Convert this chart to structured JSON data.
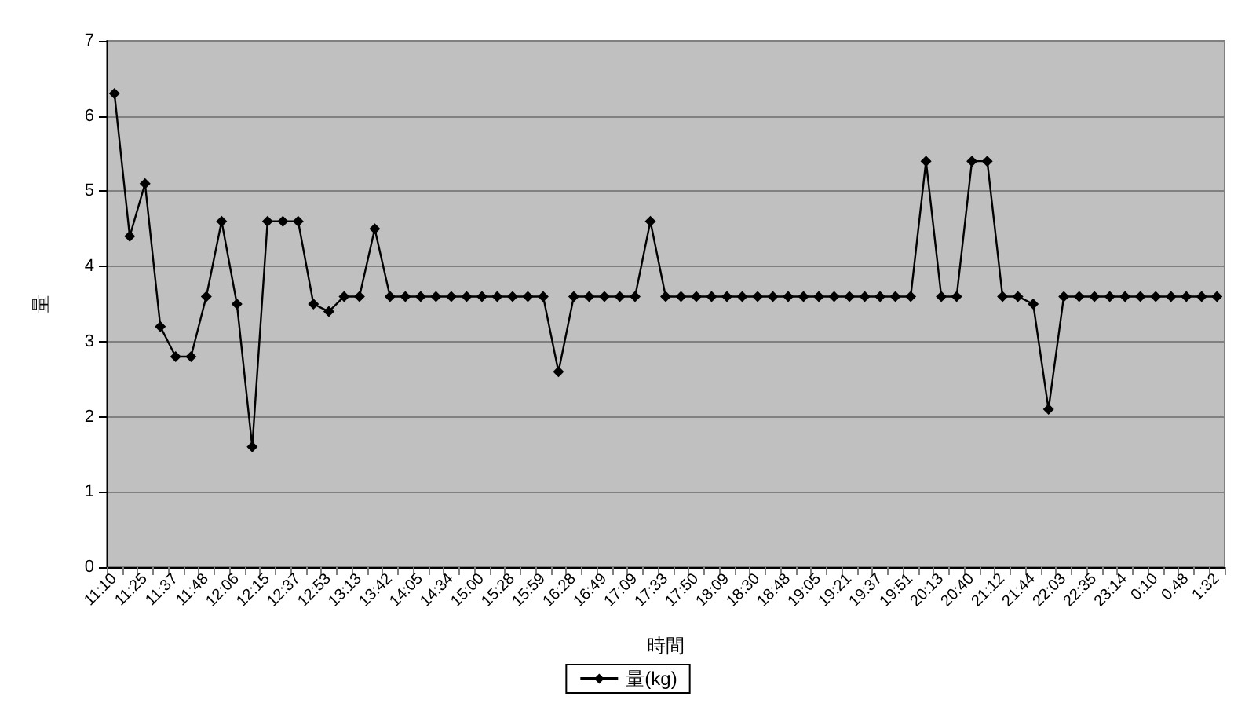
{
  "chart_data": {
    "type": "line",
    "xlabel": "時間",
    "ylabel": "量",
    "categories": [
      "11:10",
      null,
      "11:25",
      null,
      "11:37",
      null,
      "11:48",
      null,
      "12:06",
      null,
      "12:15",
      null,
      "12:37",
      null,
      "12:53",
      null,
      "13:13",
      null,
      "13:42",
      null,
      "14:05",
      null,
      "14:34",
      null,
      "15:00",
      null,
      "15:28",
      null,
      "15:59",
      null,
      "16:28",
      null,
      "16:49",
      null,
      "17:09",
      null,
      "17:33",
      null,
      "17:50",
      null,
      "18:09",
      null,
      "18:30",
      null,
      "18:48",
      null,
      "19:05",
      null,
      "19:21",
      null,
      "19:37",
      null,
      "19:51",
      null,
      "20:13",
      null,
      "20:40",
      null,
      "21:12",
      null,
      "21:44",
      null,
      "22:03",
      null,
      "22:35",
      null,
      "23:14",
      null,
      "0:10",
      null,
      "0:48",
      null,
      "1:32"
    ],
    "series": [
      {
        "name": "量(kg)",
        "color": "#000000",
        "values": [
          6.3,
          4.4,
          5.1,
          3.2,
          2.8,
          2.8,
          3.6,
          4.6,
          3.5,
          1.6,
          4.6,
          4.6,
          4.6,
          3.5,
          3.4,
          3.6,
          3.6,
          4.5,
          3.6,
          3.6,
          3.6,
          3.6,
          3.6,
          3.6,
          3.6,
          3.6,
          3.6,
          3.6,
          3.6,
          2.6,
          3.6,
          3.6,
          3.6,
          3.6,
          3.6,
          4.6,
          3.6,
          3.6,
          3.6,
          3.6,
          3.6,
          3.6,
          3.6,
          3.6,
          3.6,
          3.6,
          3.6,
          3.6,
          3.6,
          3.6,
          3.6,
          3.6,
          3.6,
          5.4,
          3.6,
          3.6,
          5.4,
          5.4,
          3.6,
          3.6,
          3.5,
          2.1,
          3.6,
          3.6,
          3.6,
          3.6,
          3.6,
          3.6,
          3.6,
          3.6,
          3.6,
          3.6,
          3.6
        ]
      }
    ],
    "ylim": [
      0,
      7
    ],
    "yticks": [
      0,
      1,
      2,
      3,
      4,
      5,
      6,
      7
    ],
    "grid": "y",
    "legend": "bottom",
    "marker": "diamond",
    "line_style": "solid"
  }
}
